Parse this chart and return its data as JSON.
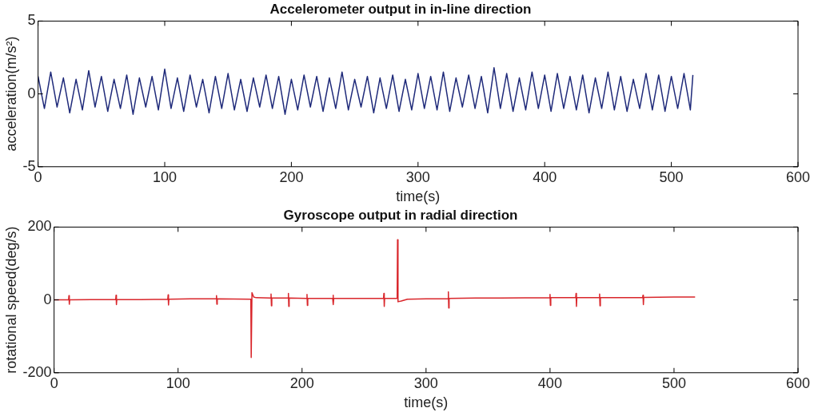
{
  "chart_data": [
    {
      "type": "line",
      "title": "Accelerometer output in in-line direction",
      "xlabel": "time(s)",
      "ylabel": "acceleration(m/s²)",
      "xlim": [
        0,
        600
      ],
      "xticks": [
        0,
        100,
        200,
        300,
        400,
        500,
        600
      ],
      "ylim": [
        -5,
        5
      ],
      "yticks": [
        -5,
        0,
        5
      ],
      "grid": false,
      "legend": false,
      "series": [
        {
          "color": "#1f2a7a",
          "x": [
            0,
            5,
            10,
            15,
            20,
            25,
            30,
            35,
            40,
            45,
            50,
            55,
            60,
            65,
            70,
            75,
            80,
            85,
            90,
            95,
            100,
            105,
            110,
            115,
            120,
            125,
            130,
            135,
            140,
            145,
            150,
            155,
            160,
            165,
            170,
            175,
            180,
            185,
            190,
            195,
            200,
            205,
            210,
            215,
            220,
            225,
            230,
            235,
            240,
            245,
            250,
            255,
            260,
            265,
            270,
            275,
            280,
            285,
            290,
            295,
            300,
            305,
            310,
            315,
            320,
            325,
            330,
            335,
            340,
            345,
            350,
            355,
            360,
            365,
            370,
            375,
            380,
            385,
            390,
            395,
            400,
            405,
            410,
            415,
            420,
            425,
            430,
            435,
            440,
            445,
            450,
            455,
            460,
            465,
            470,
            475,
            480,
            485,
            490,
            495,
            500,
            505,
            510,
            515,
            517
          ],
          "values": [
            1.2,
            -1.0,
            1.5,
            -0.9,
            1.1,
            -1.3,
            1.0,
            -1.1,
            1.6,
            -0.9,
            1.2,
            -1.2,
            1.0,
            -1.0,
            1.3,
            -1.4,
            1.1,
            -0.9,
            1.2,
            -1.1,
            1.7,
            -1.0,
            1.1,
            -1.2,
            1.3,
            -0.9,
            1.0,
            -1.3,
            1.2,
            -1.0,
            1.4,
            -1.1,
            1.0,
            -1.2,
            1.1,
            -0.9,
            1.3,
            -1.0,
            1.2,
            -1.4,
            1.0,
            -1.1,
            1.3,
            -0.9,
            1.2,
            -1.2,
            1.1,
            -1.0,
            1.5,
            -1.1,
            1.0,
            -0.9,
            1.2,
            -1.3,
            1.1,
            -1.0,
            1.3,
            -1.2,
            1.0,
            -1.1,
            1.4,
            -1.0,
            1.2,
            -1.1,
            1.5,
            -1.2,
            1.1,
            -0.9,
            1.3,
            -1.0,
            1.2,
            -1.3,
            1.8,
            -1.0,
            1.4,
            -1.2,
            1.1,
            -1.1,
            1.5,
            -1.0,
            1.3,
            -1.2,
            1.4,
            -1.0,
            1.2,
            -1.1,
            1.3,
            -1.3,
            1.1,
            -1.0,
            1.5,
            -1.1,
            1.2,
            -1.2,
            1.0,
            -1.0,
            1.4,
            -1.1,
            1.3,
            -1.2,
            1.2,
            -1.0,
            1.4,
            -1.1,
            1.3
          ]
        }
      ]
    },
    {
      "type": "line",
      "title": "Gyroscope output in radial direction",
      "xlabel": "time(s)",
      "ylabel": "rotational speed(deg/s)",
      "xlim": [
        0,
        600
      ],
      "xticks": [
        0,
        100,
        200,
        300,
        400,
        500,
        600
      ],
      "ylim": [
        -200,
        200
      ],
      "yticks": [
        -200,
        0,
        200
      ],
      "grid": false,
      "legend": false,
      "series": [
        {
          "color": "#d9262b",
          "x": [
            0,
            11.7,
            12,
            12.3,
            12.6,
            30,
            49.7,
            50,
            50.3,
            50.6,
            70,
            91.7,
            92,
            92.3,
            92.6,
            110,
            130.7,
            131,
            131.3,
            131.6,
            158.7,
            159,
            159.6,
            161,
            163,
            174.7,
            175,
            175.3,
            175.6,
            188.7,
            189,
            189.3,
            189.6,
            203.7,
            204,
            204.3,
            204.6,
            224.7,
            225,
            225.3,
            225.6,
            250,
            265.7,
            266,
            266.3,
            266.6,
            276.7,
            277,
            277.4,
            280,
            285,
            300,
            317.7,
            318,
            318.3,
            318.6,
            340,
            360,
            399.7,
            400,
            400.3,
            400.6,
            420.7,
            421,
            421.3,
            421.6,
            439.7,
            440,
            440.3,
            440.6,
            474.7,
            475,
            475.3,
            475.6,
            500,
            517
          ],
          "values": [
            0,
            0,
            12,
            -12,
            0,
            1,
            1,
            13,
            -13,
            1,
            1,
            2,
            14,
            -14,
            2,
            3,
            3,
            12,
            -12,
            3,
            2,
            -158,
            20,
            8,
            6,
            5,
            16,
            -16,
            5,
            5,
            18,
            -18,
            5,
            4,
            15,
            -15,
            4,
            4,
            13,
            -13,
            4,
            4,
            4,
            18,
            -18,
            4,
            4,
            165,
            -5,
            -3,
            2,
            3,
            3,
            22,
            -22,
            4,
            5,
            5,
            6,
            15,
            -15,
            6,
            6,
            18,
            -18,
            6,
            6,
            16,
            -16,
            6,
            7,
            13,
            -13,
            7,
            8,
            8
          ]
        }
      ]
    }
  ]
}
